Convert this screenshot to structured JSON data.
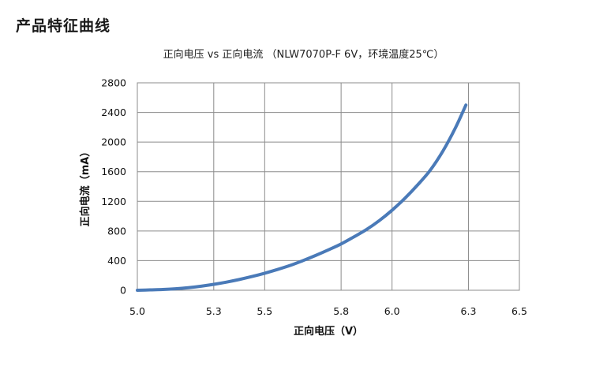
{
  "page": {
    "section_title": "产品特征曲线"
  },
  "chart_data": {
    "type": "line",
    "title": "正向电压  vs  正向电流   （NLW7070P-F 6V，环境温度25℃）",
    "xlabel": "正向电压（V）",
    "ylabel": "正向电流（mA）",
    "xlim": [
      5.0,
      6.5
    ],
    "ylim": [
      0,
      2800
    ],
    "x_ticks": [
      5.0,
      5.3,
      5.5,
      5.8,
      6.0,
      6.3,
      6.5
    ],
    "x_tick_labels": [
      "5.0",
      "5.3",
      "5.5",
      "5.8",
      "6.0",
      "6.3",
      "6.5"
    ],
    "y_ticks": [
      0,
      400,
      800,
      1200,
      1600,
      2000,
      2400,
      2800
    ],
    "y_tick_labels": [
      "0",
      "400",
      "800",
      "1200",
      "1600",
      "2000",
      "2400",
      "2800"
    ],
    "grid": true,
    "legend": "none",
    "series": [
      {
        "color": "#4a7ab8",
        "x": [
          5.0,
          5.05,
          5.1,
          5.15,
          5.2,
          5.25,
          5.3,
          5.35,
          5.4,
          5.45,
          5.5,
          5.55,
          5.6,
          5.65,
          5.7,
          5.75,
          5.8,
          5.85,
          5.9,
          5.95,
          6.0,
          6.05,
          6.1,
          6.15,
          6.2,
          6.25,
          6.29
        ],
        "y": [
          0,
          5,
          10,
          20,
          35,
          55,
          80,
          110,
          145,
          185,
          230,
          280,
          335,
          400,
          470,
          545,
          625,
          720,
          820,
          940,
          1080,
          1240,
          1420,
          1620,
          1880,
          2200,
          2500
        ]
      }
    ]
  }
}
